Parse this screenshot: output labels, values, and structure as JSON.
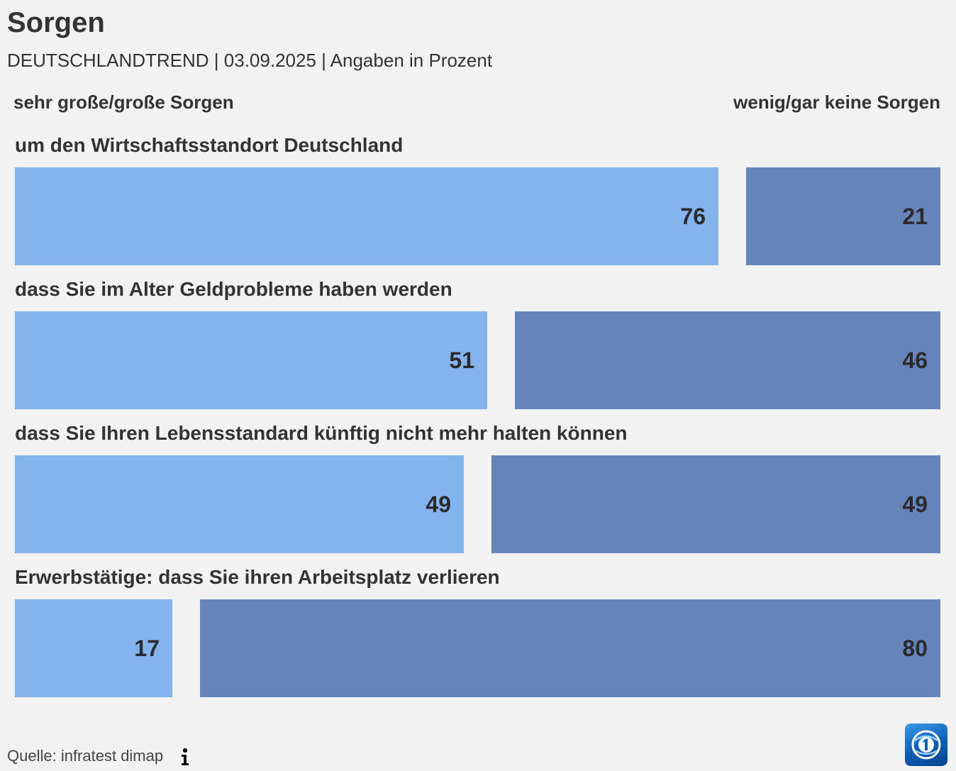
{
  "header": {
    "title": "Sorgen",
    "subtitle": "DEUTSCHLANDTREND | 03.09.2025 | Angaben in Prozent"
  },
  "legend": {
    "left": "sehr große/große Sorgen",
    "right": "wenig/gar keine Sorgen"
  },
  "colors": {
    "concern": "#84b4ee",
    "no_concern": "#6584ba",
    "background": "#f2f2f2"
  },
  "chart_data": {
    "type": "bar",
    "orientation": "horizontal",
    "stacked": true,
    "title": "Sorgen",
    "subtitle": "DEUTSCHLANDTREND | 03.09.2025 | Angaben in Prozent",
    "xlim": [
      0,
      100
    ],
    "categories": [
      "um den Wirtschaftsstandort Deutschland",
      "dass Sie im Alter Geldprobleme haben werden",
      "dass Sie Ihren Lebensstandard künftig nicht mehr halten können",
      "Erwerbstätige: dass Sie ihren Arbeitsplatz verlieren"
    ],
    "series": [
      {
        "name": "sehr große/große Sorgen",
        "values": [
          76,
          51,
          49,
          17
        ]
      },
      {
        "name": "wenig/gar keine Sorgen",
        "values": [
          21,
          46,
          49,
          80
        ]
      }
    ],
    "legend": "top"
  },
  "footer": {
    "source": "Quelle: infratest dimap",
    "info_icon": "info-icon",
    "logo": "tagesschau-logo"
  }
}
